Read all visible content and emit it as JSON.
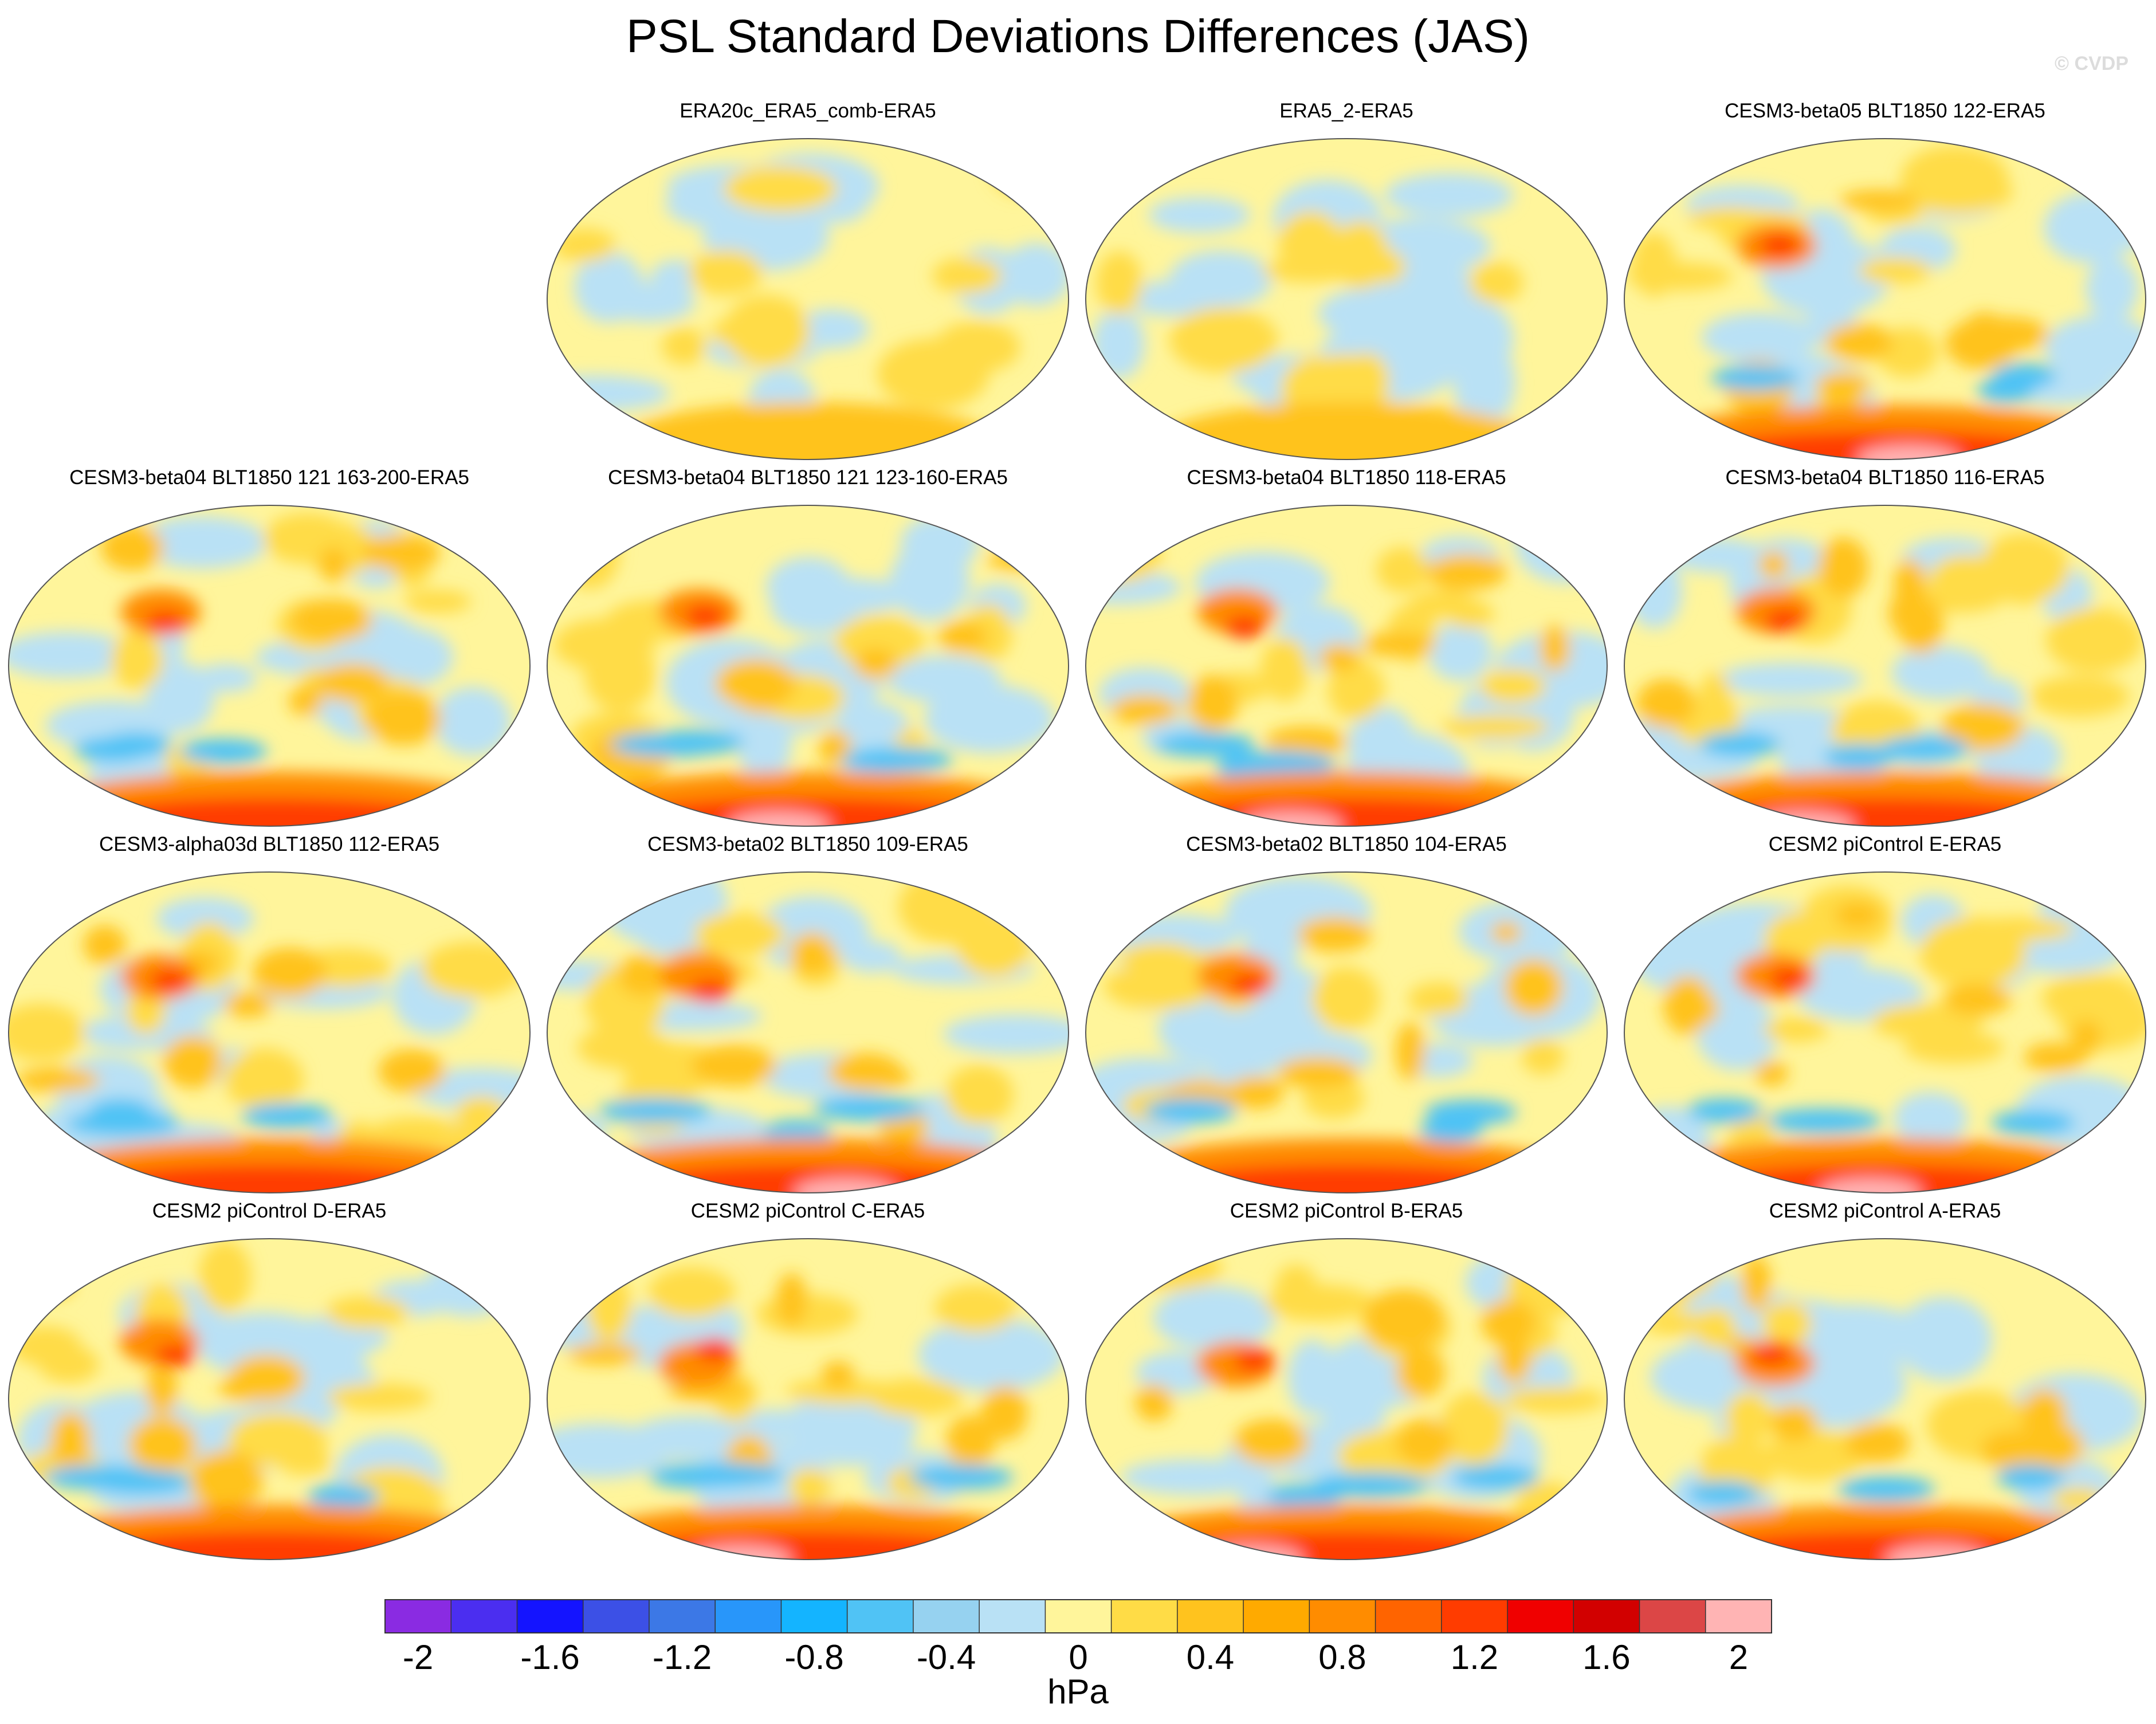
{
  "title": "PSL Standard Deviations Differences (JAS)",
  "watermark": "© CVDP",
  "panels": [
    {
      "label": "ERA20c_ERA5_comb-ERA5",
      "row": 0,
      "col": 1,
      "pattern": "mild"
    },
    {
      "label": "ERA5_2-ERA5",
      "row": 0,
      "col": 2,
      "pattern": "mild"
    },
    {
      "label": "CESM3-beta05 BLT1850 122-ERA5",
      "row": 0,
      "col": 3,
      "pattern": "strong"
    },
    {
      "label": "CESM3-beta04 BLT1850 121 163-200-ERA5",
      "row": 1,
      "col": 0,
      "pattern": "mixed"
    },
    {
      "label": "CESM3-beta04 BLT1850 121 123-160-ERA5",
      "row": 1,
      "col": 1,
      "pattern": "strong"
    },
    {
      "label": "CESM3-beta04 BLT1850 118-ERA5",
      "row": 1,
      "col": 2,
      "pattern": "strong"
    },
    {
      "label": "CESM3-beta04 BLT1850 116-ERA5",
      "row": 1,
      "col": 3,
      "pattern": "strong"
    },
    {
      "label": "CESM3-alpha03d BLT1850 112-ERA5",
      "row": 2,
      "col": 0,
      "pattern": "mixed"
    },
    {
      "label": "CESM3-beta02 BLT1850 109-ERA5",
      "row": 2,
      "col": 1,
      "pattern": "strong"
    },
    {
      "label": "CESM3-beta02 BLT1850 104-ERA5",
      "row": 2,
      "col": 2,
      "pattern": "mixed"
    },
    {
      "label": "CESM2 piControl E-ERA5",
      "row": 2,
      "col": 3,
      "pattern": "strong"
    },
    {
      "label": "CESM2 piControl D-ERA5",
      "row": 3,
      "col": 0,
      "pattern": "mixed"
    },
    {
      "label": "CESM2 piControl C-ERA5",
      "row": 3,
      "col": 1,
      "pattern": "strong"
    },
    {
      "label": "CESM2 piControl B-ERA5",
      "row": 3,
      "col": 2,
      "pattern": "strong"
    },
    {
      "label": "CESM2 piControl A-ERA5",
      "row": 3,
      "col": 3,
      "pattern": "strong"
    }
  ],
  "chart_data": {
    "type": "heatmap",
    "title": "PSL Standard Deviations Differences (JAS)",
    "units": "hPa",
    "levels": [
      -2.2,
      -2.0,
      -1.8,
      -1.6,
      -1.4,
      -1.2,
      -1.0,
      -0.8,
      -0.6,
      -0.4,
      -0.2,
      0,
      0.2,
      0.4,
      0.6,
      0.8,
      1.0,
      1.2,
      1.4,
      1.6,
      1.8,
      2.0,
      2.2
    ],
    "colorbar_labels": [
      "-2",
      "-1.6",
      "-1.2",
      "-0.8",
      "-0.4",
      "0",
      "0.4",
      "0.8",
      "1.2",
      "1.6",
      "2"
    ],
    "colorbar_label_values": [
      -2,
      -1.6,
      -1.2,
      -0.8,
      -0.4,
      0,
      0.4,
      0.8,
      1.2,
      1.6,
      2
    ],
    "colors": [
      "#8a2be2",
      "#4b2ef0",
      "#1414ff",
      "#3c50e6",
      "#3c78e6",
      "#2896fa",
      "#14b4ff",
      "#50c3f5",
      "#96d2f0",
      "#b9e1f5",
      "#fff59b",
      "#ffdc46",
      "#ffc31e",
      "#ffaa00",
      "#ff8c00",
      "#ff6400",
      "#ff3c00",
      "#f00000",
      "#d20000",
      "#dc4646",
      "#ffb4b4"
    ],
    "projection": "Robinson (global)"
  }
}
